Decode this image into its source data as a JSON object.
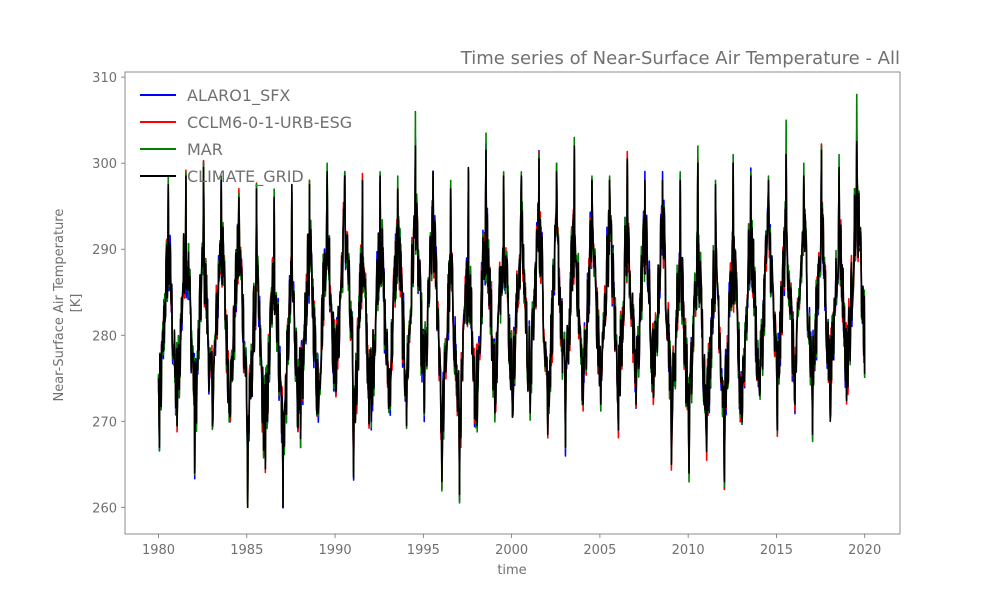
{
  "chart_data": {
    "type": "line",
    "title": "Time series of Near-Surface Air Temperature - All",
    "xlabel": "time",
    "ylabel_lines": [
      "Near-Surface Air Temperature",
      "[K]"
    ],
    "xlim": [
      1978.1,
      2022.0
    ],
    "ylim": [
      256.9,
      310.6
    ],
    "xticks": [
      1980,
      1985,
      1990,
      1995,
      2000,
      2005,
      2010,
      2015,
      2020
    ],
    "yticks": [
      260,
      270,
      280,
      290,
      300,
      310
    ],
    "grid": false,
    "legend_position": "upper-left",
    "series": [
      {
        "name": "ALARO1_SFX",
        "color": "#0000ff"
      },
      {
        "name": "CCLM6-0-1-URB-ESG",
        "color": "#ff0000"
      },
      {
        "name": "MAR",
        "color": "#008000"
      },
      {
        "name": "CLIMATE_GRID",
        "color": "#000000"
      }
    ],
    "years": [
      1980,
      1981,
      1982,
      1983,
      1984,
      1985,
      1986,
      1987,
      1988,
      1989,
      1990,
      1991,
      1992,
      1993,
      1994,
      1995,
      1996,
      1997,
      1998,
      1999,
      2000,
      2001,
      2002,
      2003,
      2004,
      2005,
      2006,
      2007,
      2008,
      2009,
      2010,
      2011,
      2012,
      2013,
      2014,
      2015,
      2016,
      2017,
      2018,
      2019
    ],
    "annual_max": [
      297.5,
      298.5,
      299.5,
      298.0,
      296.0,
      297.0,
      296.0,
      297.5,
      297.5,
      299.0,
      298.5,
      298.0,
      298.5,
      297.0,
      302.0,
      299.0,
      297.0,
      299.5,
      301.5,
      298.5,
      298.5,
      300.5,
      299.0,
      302.0,
      298.0,
      298.0,
      300.5,
      298.0,
      298.0,
      298.0,
      300.0,
      297.5,
      300.0,
      298.5,
      298.0,
      301.0,
      298.5,
      301.5,
      299.5,
      302.5
    ],
    "annual_min": [
      267.0,
      269.5,
      264.0,
      269.5,
      270.5,
      260.0,
      264.5,
      260.0,
      268.0,
      271.0,
      273.5,
      263.5,
      270.0,
      271.5,
      269.5,
      271.0,
      263.0,
      261.5,
      269.5,
      271.0,
      270.5,
      271.0,
      268.5,
      267.0,
      272.0,
      272.0,
      269.0,
      272.0,
      273.0,
      265.0,
      264.0,
      266.5,
      263.0,
      270.0,
      273.0,
      269.0,
      272.0,
      268.5,
      270.0,
      274.0
    ],
    "mar_annual_max": [
      298.5,
      299.0,
      300.0,
      298.5,
      296.5,
      297.5,
      297.0,
      297.5,
      298.0,
      300.0,
      299.0,
      298.0,
      299.0,
      298.5,
      306.0,
      299.0,
      298.0,
      299.0,
      303.5,
      299.0,
      299.0,
      301.0,
      300.0,
      303.0,
      298.5,
      298.5,
      300.5,
      297.0,
      298.0,
      299.0,
      302.0,
      298.0,
      301.0,
      299.0,
      298.5,
      305.0,
      300.0,
      302.0,
      301.0,
      308.0
    ]
  }
}
